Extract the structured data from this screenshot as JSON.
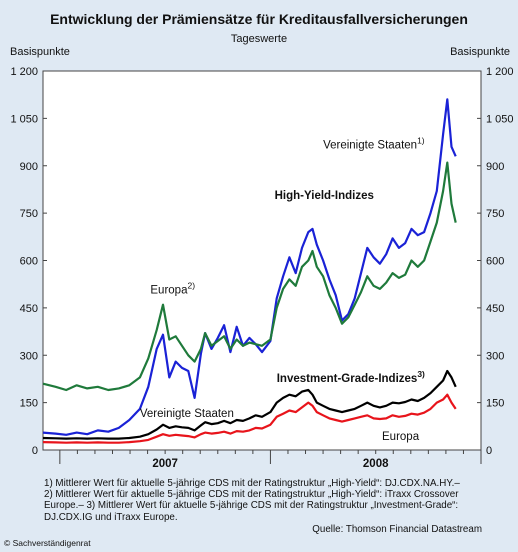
{
  "header": {
    "title": "Entwicklung der Prämiensätze für Kreditausfallversicherungen",
    "subtitle": "Tageswerte",
    "unit_left": "Basispunkte",
    "unit_right": "Basispunkte"
  },
  "footnotes": [
    "1) Mittlerer Wert für aktuelle 5-jährige CDS mit der Ratingstruktur „High-Yield“: DJ.CDX.NA.HY.–",
    "2) Mittlerer Wert für aktuelle 5-jährige CDS mit der Ratingstruktur „High-Yield“: iTraxx Crossover Europe.– 3) Mittlerer Wert für aktuelle 5-jährige CDS mit der Ratingstruktur „Investment-Grade“: DJ.CDX.IG und iTraxx Europe."
  ],
  "source": "Quelle: Thomson Financial Datastream",
  "copyright": "© Sachverständigenrat",
  "chart_data": {
    "type": "line",
    "title": "Entwicklung der Prämiensätze für Kreditausfallversicherungen",
    "subtitle": "Tageswerte",
    "ylabel": "Basispunkte",
    "ylim": [
      0,
      1200
    ],
    "yticks": [
      0,
      150,
      300,
      450,
      600,
      750,
      900,
      1050,
      1200
    ],
    "ytick_labels": [
      "0",
      "150",
      "300",
      "450",
      "600",
      "750",
      "900",
      "1 050",
      "1 200"
    ],
    "xlim": [
      2006.92,
      2009.0
    ],
    "xtick_labels": [
      {
        "label": "2007",
        "x": 2007.5
      },
      {
        "label": "2008",
        "x": 2008.5
      }
    ],
    "annotations": [
      {
        "text": "Vereinigte Staaten",
        "sup": "1)",
        "x": 2008.25,
        "y": 955,
        "bold": false
      },
      {
        "text": "High-Yield-Indizes",
        "sup": "",
        "x": 2008.02,
        "y": 795,
        "bold": true
      },
      {
        "text": "Europa",
        "sup": "2)",
        "x": 2007.43,
        "y": 495,
        "bold": false
      },
      {
        "text": "Investment-Grade-Indizes",
        "sup": "3)",
        "x": 2008.03,
        "y": 215,
        "bold": true
      },
      {
        "text": "Vereinigte Staaten",
        "sup": "",
        "x": 2007.38,
        "y": 105,
        "bold": false
      },
      {
        "text": "Europa",
        "sup": "",
        "x": 2008.53,
        "y": 32,
        "bold": false
      }
    ],
    "series": [
      {
        "name": "High-Yield Vereinigte Staaten",
        "color": "#1a22d6",
        "width": 2.2,
        "x": [
          2006.92,
          2006.98,
          2007.03,
          2007.08,
          2007.13,
          2007.18,
          2007.23,
          2007.28,
          2007.33,
          2007.38,
          2007.42,
          2007.46,
          2007.49,
          2007.52,
          2007.55,
          2007.58,
          2007.61,
          2007.64,
          2007.67,
          2007.69,
          2007.72,
          2007.75,
          2007.78,
          2007.81,
          2007.84,
          2007.87,
          2007.9,
          2007.93,
          2007.96,
          2008.0,
          2008.03,
          2008.06,
          2008.09,
          2008.12,
          2008.15,
          2008.18,
          2008.2,
          2008.22,
          2008.25,
          2008.28,
          2008.31,
          2008.34,
          2008.37,
          2008.4,
          2008.43,
          2008.46,
          2008.49,
          2008.52,
          2008.55,
          2008.58,
          2008.61,
          2008.64,
          2008.67,
          2008.7,
          2008.73,
          2008.76,
          2008.79,
          2008.82,
          2008.84,
          2008.86,
          2008.88
        ],
        "values": [
          55,
          52,
          48,
          55,
          50,
          62,
          58,
          70,
          95,
          130,
          200,
          320,
          365,
          230,
          280,
          260,
          250,
          165,
          305,
          370,
          320,
          355,
          395,
          310,
          390,
          330,
          355,
          335,
          310,
          345,
          480,
          550,
          610,
          560,
          640,
          690,
          700,
          650,
          600,
          540,
          490,
          410,
          430,
          480,
          560,
          640,
          610,
          590,
          620,
          670,
          640,
          655,
          700,
          680,
          690,
          750,
          820,
          1000,
          1110,
          960,
          930
        ]
      },
      {
        "name": "High-Yield Europa",
        "color": "#1f7a3b",
        "width": 2.2,
        "x": [
          2006.92,
          2006.98,
          2007.03,
          2007.08,
          2007.13,
          2007.18,
          2007.23,
          2007.28,
          2007.33,
          2007.38,
          2007.42,
          2007.46,
          2007.49,
          2007.52,
          2007.55,
          2007.58,
          2007.61,
          2007.64,
          2007.67,
          2007.69,
          2007.72,
          2007.75,
          2007.78,
          2007.81,
          2007.84,
          2007.87,
          2007.9,
          2007.93,
          2007.96,
          2008.0,
          2008.03,
          2008.06,
          2008.09,
          2008.12,
          2008.15,
          2008.18,
          2008.2,
          2008.22,
          2008.25,
          2008.28,
          2008.31,
          2008.34,
          2008.37,
          2008.4,
          2008.43,
          2008.46,
          2008.49,
          2008.52,
          2008.55,
          2008.58,
          2008.61,
          2008.64,
          2008.67,
          2008.7,
          2008.73,
          2008.76,
          2008.79,
          2008.82,
          2008.84,
          2008.86,
          2008.88
        ],
        "values": [
          210,
          200,
          190,
          205,
          195,
          200,
          190,
          195,
          205,
          230,
          290,
          380,
          460,
          350,
          360,
          330,
          300,
          280,
          320,
          370,
          330,
          345,
          360,
          320,
          350,
          330,
          340,
          335,
          330,
          350,
          450,
          510,
          540,
          520,
          580,
          600,
          630,
          580,
          550,
          490,
          450,
          400,
          420,
          460,
          500,
          550,
          520,
          510,
          530,
          560,
          545,
          555,
          600,
          580,
          600,
          660,
          720,
          820,
          910,
          780,
          720
        ]
      },
      {
        "name": "Investment-Grade Vereinigte Staaten",
        "color": "#000000",
        "width": 2.2,
        "x": [
          2006.92,
          2006.98,
          2007.03,
          2007.08,
          2007.13,
          2007.18,
          2007.23,
          2007.28,
          2007.33,
          2007.38,
          2007.42,
          2007.46,
          2007.49,
          2007.52,
          2007.55,
          2007.58,
          2007.61,
          2007.64,
          2007.67,
          2007.69,
          2007.72,
          2007.75,
          2007.78,
          2007.81,
          2007.84,
          2007.87,
          2007.9,
          2007.93,
          2007.96,
          2008.0,
          2008.03,
          2008.06,
          2008.09,
          2008.12,
          2008.15,
          2008.18,
          2008.2,
          2008.22,
          2008.25,
          2008.28,
          2008.31,
          2008.34,
          2008.37,
          2008.4,
          2008.43,
          2008.46,
          2008.49,
          2008.52,
          2008.55,
          2008.58,
          2008.61,
          2008.64,
          2008.67,
          2008.7,
          2008.73,
          2008.76,
          2008.79,
          2008.82,
          2008.84,
          2008.86,
          2008.88
        ],
        "values": [
          38,
          37,
          36,
          37,
          36,
          37,
          36,
          36,
          38,
          42,
          50,
          65,
          80,
          70,
          75,
          72,
          70,
          62,
          78,
          88,
          82,
          85,
          92,
          85,
          95,
          92,
          100,
          110,
          105,
          120,
          150,
          165,
          175,
          170,
          185,
          190,
          175,
          150,
          140,
          130,
          125,
          120,
          125,
          130,
          140,
          150,
          140,
          135,
          140,
          150,
          148,
          152,
          160,
          155,
          165,
          180,
          200,
          220,
          250,
          230,
          200
        ]
      },
      {
        "name": "Investment-Grade Europa",
        "color": "#e8141b",
        "width": 2.2,
        "x": [
          2006.92,
          2006.98,
          2007.03,
          2007.08,
          2007.13,
          2007.18,
          2007.23,
          2007.28,
          2007.33,
          2007.38,
          2007.42,
          2007.46,
          2007.49,
          2007.52,
          2007.55,
          2007.58,
          2007.61,
          2007.64,
          2007.67,
          2007.69,
          2007.72,
          2007.75,
          2007.78,
          2007.81,
          2007.84,
          2007.87,
          2007.9,
          2007.93,
          2007.96,
          2008.0,
          2008.03,
          2008.06,
          2008.09,
          2008.12,
          2008.15,
          2008.18,
          2008.2,
          2008.22,
          2008.25,
          2008.28,
          2008.31,
          2008.34,
          2008.37,
          2008.4,
          2008.43,
          2008.46,
          2008.49,
          2008.52,
          2008.55,
          2008.58,
          2008.61,
          2008.64,
          2008.67,
          2008.7,
          2008.73,
          2008.76,
          2008.79,
          2008.82,
          2008.84,
          2008.86,
          2008.88
        ],
        "values": [
          25,
          24,
          23,
          24,
          23,
          24,
          23,
          23,
          25,
          28,
          32,
          42,
          50,
          45,
          48,
          46,
          44,
          40,
          50,
          55,
          52,
          54,
          58,
          52,
          60,
          58,
          62,
          70,
          68,
          80,
          105,
          115,
          125,
          120,
          135,
          150,
          140,
          120,
          110,
          100,
          95,
          90,
          95,
          100,
          105,
          110,
          100,
          98,
          100,
          110,
          105,
          108,
          115,
          112,
          118,
          130,
          150,
          160,
          175,
          150,
          130
        ]
      }
    ]
  }
}
